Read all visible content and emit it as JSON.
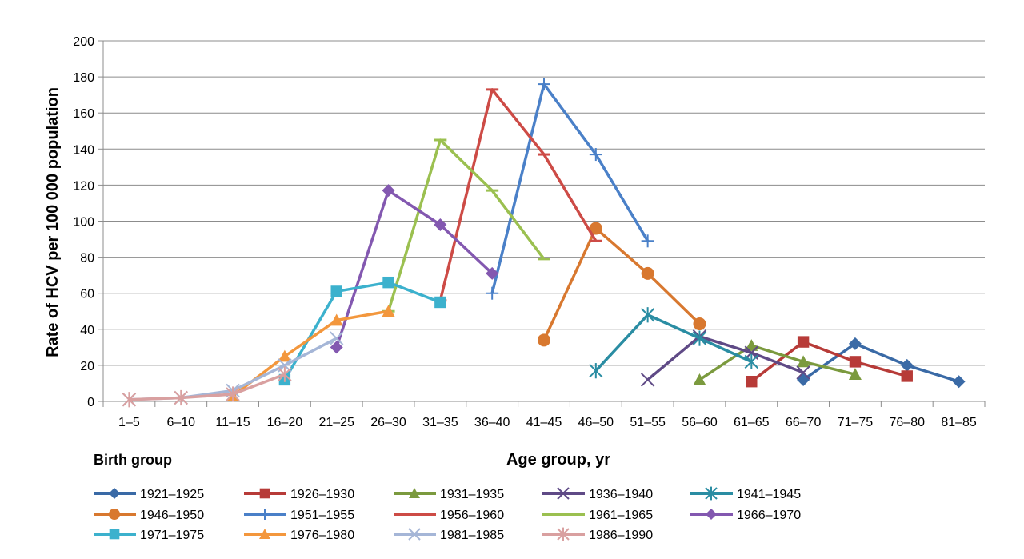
{
  "chart_data": {
    "type": "line",
    "title": "",
    "xlabel": "Age group, yr",
    "ylabel": "Rate of HCV per 100 000 population",
    "legend_title": "Birth group",
    "legend_position": "bottom",
    "grid": true,
    "ylim": [
      0,
      200
    ],
    "yticks": [
      0,
      20,
      40,
      60,
      80,
      100,
      120,
      140,
      160,
      180,
      200
    ],
    "categories": [
      "1–5",
      "6–10",
      "11–15",
      "16–20",
      "21–25",
      "26–30",
      "31–35",
      "36–40",
      "41–45",
      "46–50",
      "51–55",
      "56–60",
      "61–65",
      "66–70",
      "71–75",
      "76–80",
      "81–85"
    ],
    "series": [
      {
        "name": "1921–1925",
        "color": "#3a6aa6",
        "marker": "diamond",
        "points": [
          [
            13,
            12
          ],
          [
            14,
            32
          ],
          [
            15,
            20
          ],
          [
            16,
            11
          ]
        ]
      },
      {
        "name": "1926–1930",
        "color": "#b73b38",
        "marker": "square",
        "points": [
          [
            12,
            11
          ],
          [
            13,
            33
          ],
          [
            14,
            22
          ],
          [
            15,
            14
          ]
        ]
      },
      {
        "name": "1931–1935",
        "color": "#7b9a3e",
        "marker": "triangle",
        "points": [
          [
            11,
            12
          ],
          [
            12,
            31
          ],
          [
            13,
            22
          ],
          [
            14,
            15
          ]
        ]
      },
      {
        "name": "1936–1940",
        "color": "#5f4a86",
        "marker": "x",
        "points": [
          [
            10,
            12
          ],
          [
            11,
            36
          ],
          [
            12,
            27
          ],
          [
            13,
            16
          ]
        ]
      },
      {
        "name": "1941–1945",
        "color": "#2a8da3",
        "marker": "asterisk",
        "points": [
          [
            9,
            17
          ],
          [
            10,
            48
          ],
          [
            11,
            35
          ],
          [
            12,
            22
          ]
        ]
      },
      {
        "name": "1946–1950",
        "color": "#d8782f",
        "marker": "circle",
        "points": [
          [
            8,
            34
          ],
          [
            9,
            96
          ],
          [
            10,
            71
          ],
          [
            11,
            43
          ]
        ]
      },
      {
        "name": "1951–1955",
        "color": "#4a80c8",
        "marker": "plus",
        "points": [
          [
            7,
            60
          ],
          [
            8,
            176
          ],
          [
            9,
            137
          ],
          [
            10,
            89
          ]
        ]
      },
      {
        "name": "1956–1960",
        "color": "#cd4b46",
        "marker": "dash",
        "points": [
          [
            6,
            56
          ],
          [
            7,
            173
          ],
          [
            8,
            137
          ],
          [
            9,
            89
          ]
        ]
      },
      {
        "name": "1961–1965",
        "color": "#9bc050",
        "marker": "dash",
        "points": [
          [
            5,
            50
          ],
          [
            6,
            145
          ],
          [
            7,
            117
          ],
          [
            8,
            79
          ]
        ]
      },
      {
        "name": "1966–1970",
        "color": "#8358b0",
        "marker": "diamond",
        "points": [
          [
            4,
            30
          ],
          [
            5,
            117
          ],
          [
            6,
            98
          ],
          [
            7,
            71
          ]
        ]
      },
      {
        "name": "1971–1975",
        "color": "#3cb1cd",
        "marker": "square",
        "points": [
          [
            3,
            12
          ],
          [
            4,
            61
          ],
          [
            5,
            66
          ],
          [
            6,
            55
          ]
        ]
      },
      {
        "name": "1976–1980",
        "color": "#f3973d",
        "marker": "triangle",
        "points": [
          [
            2,
            3
          ],
          [
            3,
            25
          ],
          [
            4,
            45
          ],
          [
            5,
            50
          ]
        ]
      },
      {
        "name": "1981–1985",
        "color": "#a5b6d7",
        "marker": "x",
        "points": [
          [
            0,
            1
          ],
          [
            1,
            2
          ],
          [
            2,
            6
          ],
          [
            3,
            20
          ],
          [
            4,
            35
          ]
        ]
      },
      {
        "name": "1986–1990",
        "color": "#d9a0a0",
        "marker": "asterisk",
        "points": [
          [
            0,
            1
          ],
          [
            1,
            2
          ],
          [
            2,
            4
          ],
          [
            3,
            15
          ]
        ]
      }
    ]
  }
}
